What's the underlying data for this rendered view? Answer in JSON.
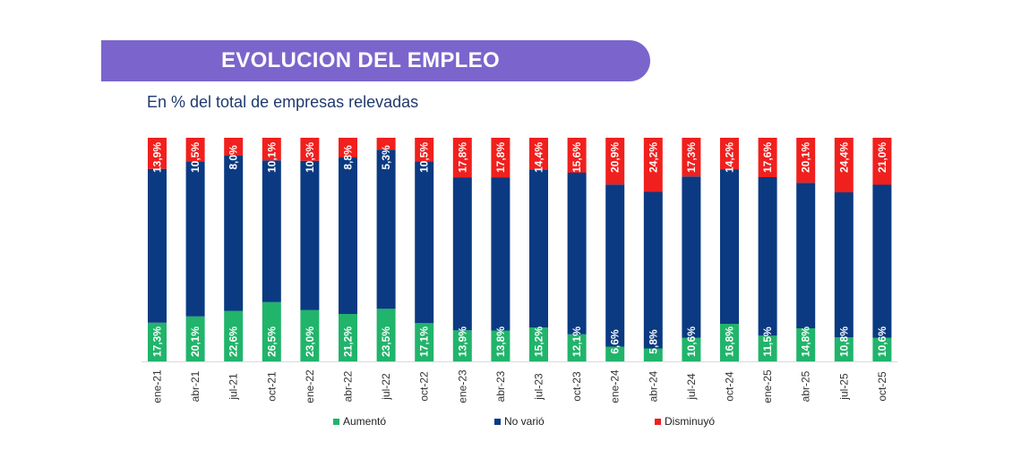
{
  "header": {
    "title": "EVOLUCION DEL EMPLEO",
    "subtitle": "En % del total de empresas relevadas"
  },
  "colors": {
    "banner": "#7b65cc",
    "aumento": "#21b46b",
    "no_vario": "#0b3a82",
    "disminuyo": "#f0201e"
  },
  "chart_data": {
    "type": "bar",
    "stacked": true,
    "normalized": true,
    "categories": [
      "ene-21",
      "abr-21",
      "jul-21",
      "oct-21",
      "ene-22",
      "abr-22",
      "jul-22",
      "oct-22",
      "ene-23",
      "abr-23",
      "jul-23",
      "oct-23",
      "ene-24",
      "abr-24",
      "jul-24",
      "oct-24",
      "ene-25",
      "abr-25",
      "jul-25",
      "oct-25"
    ],
    "series": [
      {
        "name": "Aumentó",
        "color": "#21b46b",
        "values": [
          17.3,
          20.1,
          22.6,
          26.5,
          23.0,
          21.2,
          23.5,
          17.1,
          13.9,
          13.8,
          15.2,
          12.1,
          6.6,
          5.8,
          10.6,
          16.8,
          11.5,
          14.8,
          10.8,
          10.6
        ],
        "labels": [
          "17,3%",
          "20,1%",
          "22,6%",
          "26,5%",
          "23,0%",
          "21,2%",
          "23,5%",
          "17,1%",
          "13,9%",
          "13,8%",
          "15,2%",
          "12,1%",
          "6,6%",
          "5,8%",
          "10,6%",
          "16,8%",
          "11,5%",
          "14,8%",
          "10,8%",
          "10,6%"
        ]
      },
      {
        "name": "No varió",
        "color": "#0b3a82",
        "values": [
          68.8,
          69.4,
          69.4,
          63.4,
          66.7,
          70.0,
          71.2,
          72.4,
          68.3,
          68.4,
          70.4,
          72.3,
          72.5,
          70.0,
          72.1,
          69.0,
          70.9,
          65.1,
          64.8,
          68.4
        ]
      },
      {
        "name": "Disminuyó",
        "color": "#f0201e",
        "values": [
          13.9,
          10.5,
          8.0,
          10.1,
          10.3,
          8.8,
          5.3,
          10.5,
          17.8,
          17.8,
          14.4,
          15.6,
          20.9,
          24.2,
          17.3,
          14.2,
          17.6,
          20.1,
          24.4,
          21.0
        ],
        "labels": [
          "13,9%",
          "10,5%",
          "8,0%",
          "10,1%",
          "10,3%",
          "8,8%",
          "5,3%",
          "10,5%",
          "17,8%",
          "17,8%",
          "14,4%",
          "15,6%",
          "20,9%",
          "24,2%",
          "17,3%",
          "14,2%",
          "17,6%",
          "20,1%",
          "24,4%",
          "21,0%"
        ]
      }
    ],
    "legend": {
      "position": "bottom",
      "items": [
        "Aumentó",
        "No varió",
        "Disminuyó"
      ]
    },
    "ylim": [
      0,
      100
    ],
    "grid": false
  }
}
